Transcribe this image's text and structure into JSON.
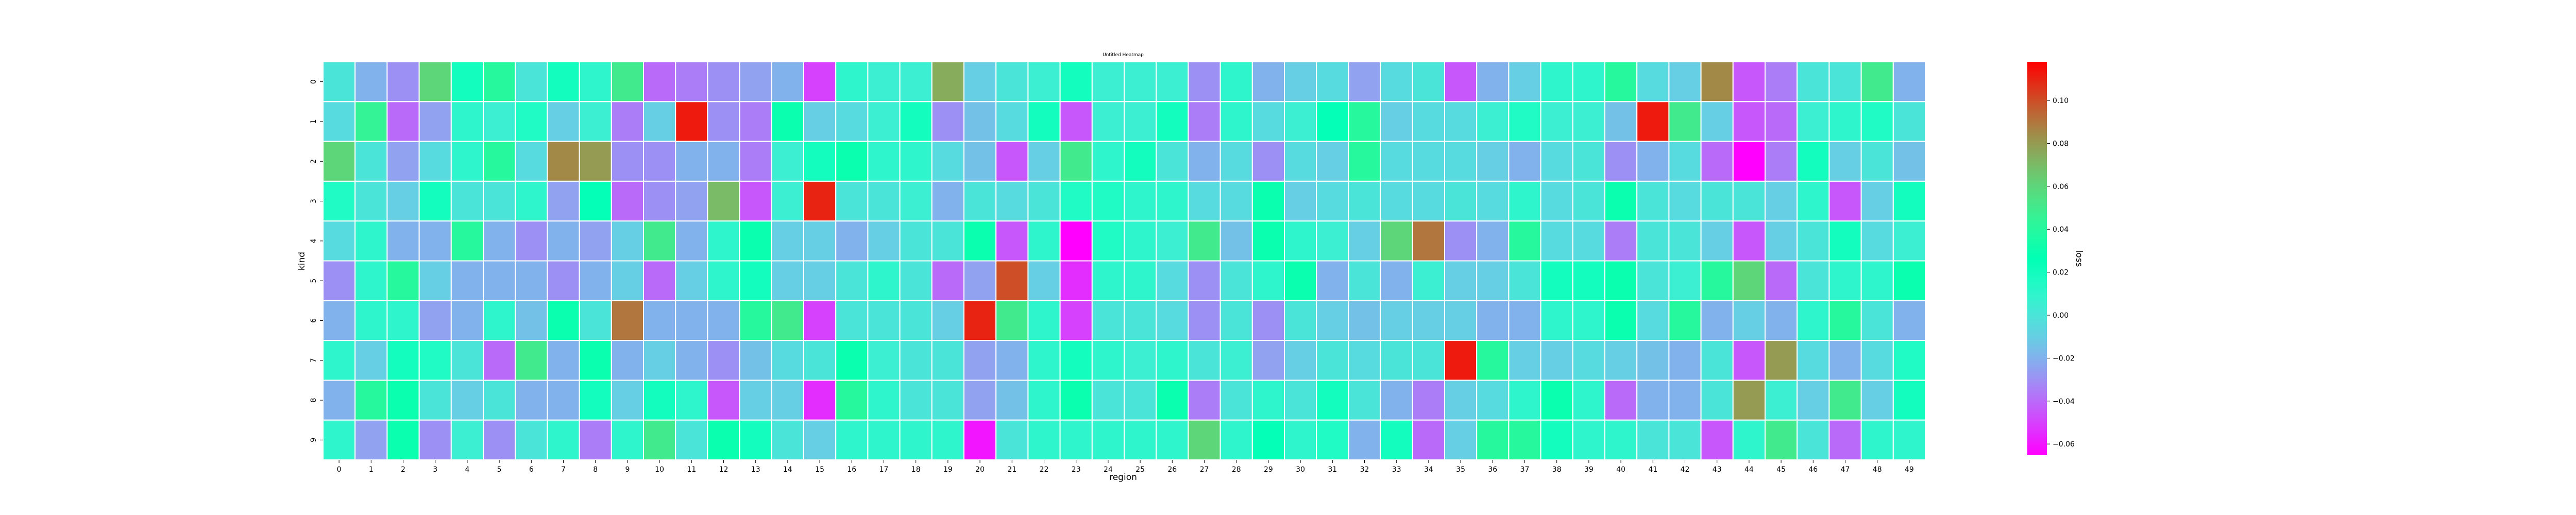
{
  "chart_data": {
    "type": "heatmap",
    "title": "Untitled Heatmap",
    "xlabel": "region",
    "ylabel": "kind",
    "colorbar_label": "loss",
    "colormap": "rainbow",
    "x_labels": [
      "0",
      "1",
      "2",
      "3",
      "4",
      "5",
      "6",
      "7",
      "8",
      "9",
      "10",
      "11",
      "12",
      "13",
      "14",
      "15",
      "16",
      "17",
      "18",
      "19",
      "20",
      "21",
      "22",
      "23",
      "24",
      "25",
      "26",
      "27",
      "28",
      "29",
      "30",
      "31",
      "32",
      "33",
      "34",
      "35",
      "36",
      "37",
      "38",
      "39",
      "40",
      "41",
      "42",
      "43",
      "44",
      "45",
      "46",
      "47",
      "48",
      "49"
    ],
    "y_labels": [
      "0",
      "1",
      "2",
      "3",
      "4",
      "5",
      "6",
      "7",
      "8",
      "9"
    ],
    "vmin": -0.065,
    "vmax": 0.118,
    "colorbar_ticks": [
      -0.06,
      -0.04,
      -0.02,
      0.0,
      0.02,
      0.04,
      0.06,
      0.08,
      0.1
    ],
    "colorbar_tick_labels": [
      "−0.06",
      "−0.04",
      "−0.02",
      "0.00",
      "0.02",
      "0.04",
      "0.06",
      "0.08",
      "0.10"
    ],
    "values": [
      [
        0.0,
        -0.02,
        -0.03,
        0.06,
        0.02,
        0.04,
        0.0,
        0.02,
        0.01,
        0.05,
        -0.04,
        -0.035,
        -0.03,
        -0.025,
        -0.02,
        -0.05,
        0.01,
        0.005,
        0.005,
        0.075,
        -0.01,
        0.0,
        0.005,
        0.02,
        0.005,
        0.005,
        0.005,
        -0.03,
        0.01,
        -0.02,
        -0.01,
        -0.005,
        -0.025,
        -0.005,
        0.0,
        -0.045,
        -0.02,
        -0.01,
        0.01,
        0.01,
        0.04,
        -0.005,
        -0.01,
        0.085,
        -0.045,
        -0.035,
        0.0,
        0.0,
        0.05,
        -0.02
      ],
      [
        -0.005,
        0.045,
        -0.04,
        -0.025,
        0.01,
        0.005,
        0.015,
        -0.01,
        0.005,
        -0.035,
        -0.01,
        0.112,
        -0.03,
        -0.035,
        0.03,
        -0.01,
        -0.005,
        0.005,
        0.02,
        -0.03,
        -0.015,
        -0.005,
        0.02,
        -0.045,
        0.005,
        0.005,
        0.02,
        -0.035,
        0.01,
        -0.005,
        0.005,
        0.025,
        0.04,
        -0.01,
        -0.005,
        -0.005,
        0.005,
        0.015,
        0.005,
        0.005,
        -0.015,
        0.112,
        0.05,
        -0.01,
        -0.045,
        -0.04,
        0.005,
        0.01,
        0.015,
        0.0
      ],
      [
        0.06,
        0.0,
        -0.025,
        -0.005,
        0.01,
        0.04,
        -0.005,
        0.085,
        0.08,
        -0.03,
        -0.03,
        -0.02,
        -0.02,
        -0.035,
        0.005,
        0.02,
        0.03,
        0.01,
        0.01,
        -0.005,
        -0.015,
        -0.045,
        -0.01,
        0.05,
        0.01,
        0.02,
        0.0,
        -0.02,
        -0.005,
        -0.03,
        -0.005,
        -0.01,
        0.04,
        -0.005,
        -0.005,
        -0.005,
        -0.01,
        -0.02,
        -0.005,
        0.0,
        -0.03,
        -0.02,
        -0.005,
        -0.04,
        -0.065,
        -0.035,
        0.02,
        -0.01,
        0.0,
        -0.015
      ],
      [
        0.015,
        0.0,
        -0.01,
        0.02,
        0.0,
        0.0,
        0.01,
        -0.025,
        0.025,
        -0.04,
        -0.03,
        -0.025,
        0.07,
        -0.045,
        0.005,
        0.11,
        0.0,
        0.0,
        0.005,
        -0.02,
        0.0,
        -0.005,
        0.0,
        0.015,
        0.015,
        0.01,
        0.01,
        -0.005,
        -0.005,
        0.03,
        -0.01,
        -0.005,
        0.0,
        -0.005,
        -0.005,
        0.0,
        -0.005,
        0.01,
        -0.005,
        0.0,
        0.03,
        0.0,
        -0.005,
        0.0,
        0.0,
        -0.01,
        0.01,
        -0.045,
        -0.01,
        0.02
      ],
      [
        -0.005,
        0.01,
        -0.02,
        -0.02,
        0.04,
        -0.02,
        -0.03,
        -0.02,
        -0.025,
        -0.01,
        0.05,
        -0.02,
        0.01,
        0.03,
        -0.01,
        -0.01,
        -0.02,
        -0.01,
        0.0,
        0.0,
        0.03,
        -0.045,
        0.01,
        -0.065,
        0.015,
        0.01,
        0.005,
        0.05,
        -0.015,
        0.03,
        0.01,
        0.005,
        -0.01,
        0.06,
        0.09,
        -0.03,
        -0.02,
        0.04,
        -0.005,
        -0.005,
        -0.035,
        0.0,
        0.0,
        -0.01,
        -0.045,
        -0.01,
        0.0,
        0.02,
        -0.005,
        0.005
      ],
      [
        -0.03,
        0.01,
        0.04,
        -0.01,
        -0.02,
        -0.02,
        -0.02,
        -0.03,
        -0.02,
        -0.01,
        -0.04,
        -0.01,
        0.01,
        0.02,
        -0.01,
        -0.01,
        0.0,
        0.01,
        0.0,
        -0.04,
        -0.025,
        0.1,
        -0.01,
        -0.055,
        0.01,
        0.01,
        -0.005,
        -0.03,
        0.0,
        0.01,
        0.03,
        -0.02,
        0.0,
        -0.02,
        0.005,
        -0.01,
        -0.01,
        0.0,
        0.02,
        0.02,
        0.03,
        0.0,
        0.005,
        0.04,
        0.06,
        -0.04,
        0.0,
        0.01,
        0.01,
        0.03
      ],
      [
        -0.02,
        0.01,
        0.01,
        -0.025,
        -0.02,
        0.01,
        -0.015,
        0.03,
        0.0,
        0.09,
        -0.02,
        -0.02,
        -0.02,
        0.04,
        0.05,
        -0.05,
        0.0,
        0.0,
        0.0,
        -0.01,
        0.11,
        0.05,
        0.01,
        -0.05,
        0.0,
        0.0,
        -0.005,
        -0.03,
        0.0,
        -0.03,
        0.0,
        -0.01,
        -0.015,
        -0.01,
        -0.01,
        -0.01,
        -0.02,
        -0.02,
        0.01,
        0.01,
        0.03,
        -0.005,
        0.04,
        -0.02,
        -0.01,
        -0.02,
        0.01,
        0.04,
        0.0,
        -0.02
      ],
      [
        0.01,
        -0.01,
        0.02,
        0.015,
        0.0,
        -0.04,
        0.05,
        -0.02,
        0.03,
        -0.02,
        -0.01,
        -0.02,
        -0.03,
        -0.015,
        -0.005,
        0.0,
        0.03,
        0.005,
        0.0,
        0.0,
        -0.025,
        -0.02,
        0.01,
        0.02,
        0.01,
        0.005,
        0.01,
        0.0,
        0.005,
        -0.025,
        -0.01,
        0.0,
        -0.005,
        0.0,
        0.0,
        0.112,
        0.04,
        -0.01,
        -0.01,
        -0.005,
        -0.01,
        -0.015,
        -0.02,
        0.0,
        -0.045,
        0.08,
        -0.005,
        -0.02,
        -0.005,
        0.015
      ],
      [
        -0.02,
        0.04,
        0.03,
        0.0,
        -0.01,
        0.0,
        -0.02,
        -0.02,
        0.02,
        -0.01,
        0.02,
        0.01,
        -0.045,
        -0.01,
        -0.01,
        -0.055,
        0.04,
        0.01,
        0.0,
        0.0,
        -0.025,
        -0.015,
        0.01,
        0.03,
        0.0,
        0.0,
        0.03,
        -0.035,
        0.0,
        0.01,
        0.0,
        0.02,
        0.0,
        -0.02,
        -0.035,
        -0.01,
        -0.005,
        0.01,
        0.03,
        0.01,
        -0.04,
        -0.02,
        -0.02,
        0.0,
        0.08,
        0.005,
        -0.01,
        0.05,
        -0.01,
        0.02
      ],
      [
        0.01,
        -0.025,
        0.03,
        -0.03,
        0.005,
        -0.03,
        0.0,
        0.01,
        -0.035,
        0.01,
        0.05,
        0.0,
        0.03,
        0.02,
        0.0,
        -0.01,
        0.01,
        0.01,
        0.01,
        0.01,
        -0.06,
        0.0,
        0.01,
        0.01,
        0.01,
        0.01,
        0.01,
        0.06,
        0.01,
        0.025,
        0.01,
        0.015,
        -0.02,
        0.02,
        -0.04,
        -0.01,
        0.04,
        0.04,
        0.02,
        0.01,
        0.01,
        0.0,
        0.0,
        -0.045,
        0.01,
        0.05,
        0.0,
        -0.04,
        0.01,
        0.01
      ]
    ]
  }
}
